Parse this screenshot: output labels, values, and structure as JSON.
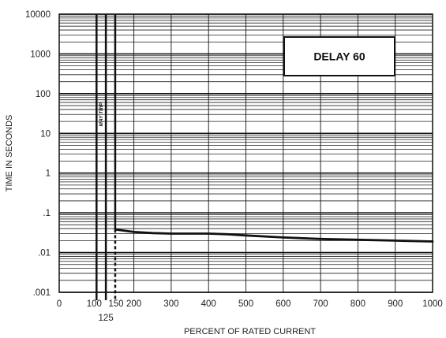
{
  "chart_data": {
    "type": "line",
    "title": "",
    "xlabel": "PERCENT OF RATED CURRENT",
    "ylabel": "TIME IN SECONDS",
    "xlim": [
      0,
      1000
    ],
    "ylim": [
      0.001,
      10000
    ],
    "y_scale": "log",
    "grid": true,
    "x_ticks": [
      0,
      100,
      150,
      200,
      300,
      400,
      500,
      600,
      700,
      800,
      900,
      1000
    ],
    "x_tick_labels": [
      "0",
      "100",
      "150",
      "200",
      "300",
      "400",
      "500",
      "600",
      "700",
      "800",
      "900",
      "1000"
    ],
    "x_extra_tick": {
      "x": 125,
      "label": "125"
    },
    "y_ticks": [
      0.001,
      0.01,
      0.1,
      1,
      10,
      100,
      1000,
      10000
    ],
    "y_tick_labels": [
      ".001",
      ".01",
      ".1",
      "1",
      "10",
      "100",
      "1000",
      "10000"
    ],
    "series": [
      {
        "x": [
          150,
          160,
          200,
          250,
          300,
          350,
          400,
          450,
          500,
          600,
          700,
          800,
          900,
          1000
        ],
        "y": [
          0.038,
          0.037,
          0.033,
          0.031,
          0.03,
          0.03,
          0.03,
          0.029,
          0.027,
          0.024,
          0.022,
          0.021,
          0.02,
          0.019
        ]
      }
    ],
    "vertical_lines": [
      100,
      125,
      150
    ],
    "dashed_segment": {
      "x": 150,
      "y_from": 0.001,
      "y_to": 0.038
    },
    "annotations": [
      {
        "text": "MAY TRIP",
        "x": 112,
        "y": 30,
        "rotation": -90
      },
      {
        "text": "DELAY 60",
        "position": "top-right box"
      }
    ]
  }
}
